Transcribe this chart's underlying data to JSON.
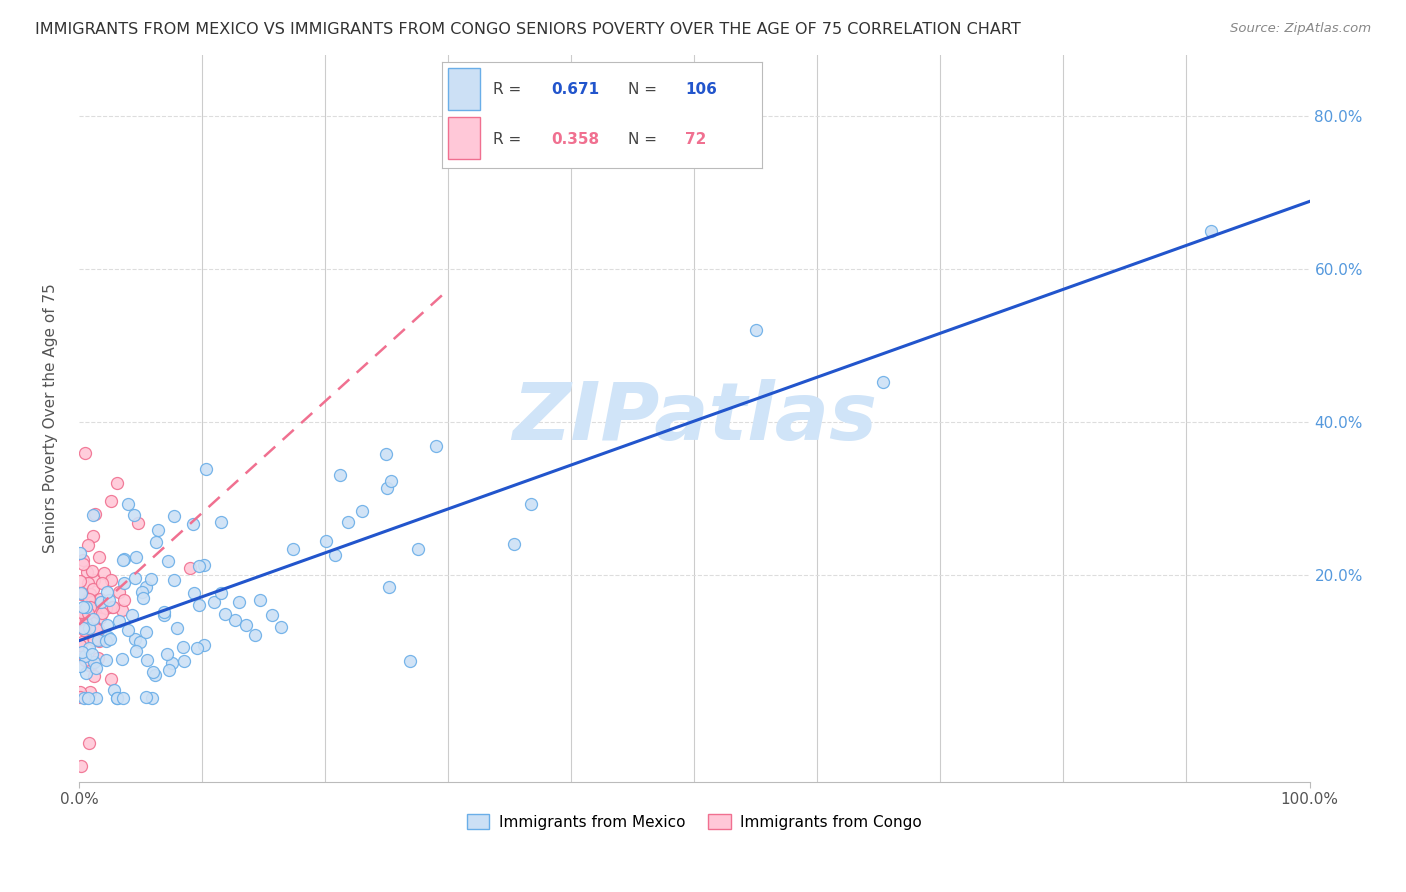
{
  "title": "IMMIGRANTS FROM MEXICO VS IMMIGRANTS FROM CONGO SENIORS POVERTY OVER THE AGE OF 75 CORRELATION CHART",
  "source": "Source: ZipAtlas.com",
  "ylabel": "Seniors Poverty Over the Age of 75",
  "xlim": [
    0,
    1.0
  ],
  "ylim": [
    0.0,
    0.88
  ],
  "ytick_positions": [
    0.2,
    0.4,
    0.6,
    0.8
  ],
  "ytick_labels": [
    "20.0%",
    "40.0%",
    "60.0%",
    "80.0%"
  ],
  "xtick_positions": [
    0.0,
    1.0
  ],
  "xtick_labels": [
    "0.0%",
    "100.0%"
  ],
  "mexico_color": "#cce0f5",
  "mexico_edge_color": "#6aaee8",
  "congo_color": "#ffc8d8",
  "congo_edge_color": "#f07090",
  "mexico_line_color": "#2255cc",
  "congo_line_color": "#e05580",
  "legend_mexico_r": "0.671",
  "legend_mexico_n": "106",
  "legend_congo_r": "0.358",
  "legend_congo_n": "72",
  "watermark": "ZIPatlas",
  "watermark_color": "#d0e4f8",
  "title_fontsize": 11.5,
  "axis_fontsize": 11,
  "tick_fontsize": 11,
  "right_tick_color": "#5599dd"
}
